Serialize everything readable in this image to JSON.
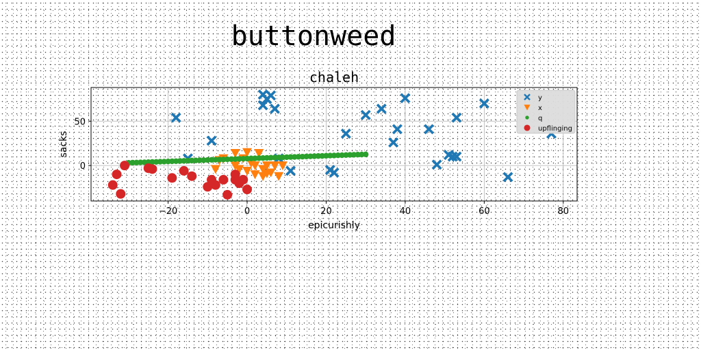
{
  "figure": {
    "suptitle": "buttonweed"
  },
  "chart_data": {
    "type": "scatter",
    "title": "chaleh",
    "xlabel": "epicurishly",
    "ylabel": "sacks",
    "xlim": [
      -39.5,
      83.5
    ],
    "ylim": [
      -40,
      88
    ],
    "xticks": [
      -20,
      0,
      20,
      40,
      60,
      80
    ],
    "yticks": [
      0,
      50
    ],
    "grid": true,
    "legend_position": "top-right",
    "series": [
      {
        "name": "y",
        "marker": "x",
        "color": "#1f77b4",
        "points": [
          [
            -18,
            54
          ],
          [
            -15,
            8
          ],
          [
            -9,
            28
          ],
          [
            4,
            68
          ],
          [
            4,
            80
          ],
          [
            5,
            75
          ],
          [
            6,
            79
          ],
          [
            7,
            64
          ],
          [
            8,
            8
          ],
          [
            11,
            -6
          ],
          [
            21,
            -5
          ],
          [
            22,
            -8
          ],
          [
            25,
            36
          ],
          [
            30,
            57
          ],
          [
            34,
            64
          ],
          [
            37,
            26
          ],
          [
            38,
            41
          ],
          [
            40,
            76
          ],
          [
            46,
            41
          ],
          [
            48,
            1
          ],
          [
            51,
            12
          ],
          [
            52,
            10
          ],
          [
            53,
            10
          ],
          [
            53,
            54
          ],
          [
            60,
            70
          ],
          [
            66,
            -13
          ],
          [
            77,
            36
          ]
        ]
      },
      {
        "name": "x",
        "marker": "v",
        "color": "#ff7f0e",
        "points": [
          [
            -8,
            -4
          ],
          [
            -7,
            6
          ],
          [
            -6,
            8
          ],
          [
            -3,
            14
          ],
          [
            -3,
            0
          ],
          [
            -2,
            -4
          ],
          [
            -1,
            8
          ],
          [
            0,
            15
          ],
          [
            0,
            -6
          ],
          [
            1,
            3
          ],
          [
            2,
            0
          ],
          [
            2,
            -10
          ],
          [
            3,
            14
          ],
          [
            4,
            -4
          ],
          [
            4,
            -12
          ],
          [
            5,
            0
          ],
          [
            5,
            -9
          ],
          [
            6,
            -8
          ],
          [
            7,
            0
          ],
          [
            8,
            -12
          ],
          [
            9,
            0
          ]
        ]
      },
      {
        "name": "q",
        "marker": "o-small",
        "color": "#2ca02c",
        "points": [
          [
            -30.0,
            3.0
          ],
          [
            -29.0,
            3.2
          ],
          [
            -28.0,
            3.3
          ],
          [
            -27.0,
            3.5
          ],
          [
            -26.0,
            3.6
          ],
          [
            -25.0,
            3.8
          ],
          [
            -24.0,
            4.0
          ],
          [
            -23.0,
            4.1
          ],
          [
            -22.0,
            4.3
          ],
          [
            -21.0,
            4.4
          ],
          [
            -20.0,
            4.6
          ],
          [
            -19.0,
            4.8
          ],
          [
            -18.0,
            4.9
          ],
          [
            -17.0,
            5.1
          ],
          [
            -16.0,
            5.2
          ],
          [
            -15.0,
            5.4
          ],
          [
            -14.0,
            5.6
          ],
          [
            -13.0,
            5.7
          ],
          [
            -12.0,
            5.9
          ],
          [
            -11.0,
            6.0
          ],
          [
            -10.0,
            6.2
          ],
          [
            -9.0,
            6.4
          ],
          [
            -8.0,
            6.5
          ],
          [
            -7.0,
            6.7
          ],
          [
            -6.0,
            6.8
          ],
          [
            -5.0,
            7.0
          ],
          [
            -4.0,
            7.2
          ],
          [
            -3.0,
            7.3
          ],
          [
            -2.0,
            7.5
          ],
          [
            -1.0,
            7.6
          ],
          [
            0.0,
            7.8
          ],
          [
            1.0,
            8.0
          ],
          [
            2.0,
            8.1
          ],
          [
            3.0,
            8.3
          ],
          [
            4.0,
            8.4
          ],
          [
            5.0,
            8.6
          ],
          [
            6.0,
            8.8
          ],
          [
            7.0,
            8.9
          ],
          [
            8.0,
            9.1
          ],
          [
            9.0,
            9.2
          ],
          [
            10.0,
            9.4
          ],
          [
            11.0,
            9.6
          ],
          [
            12.0,
            9.7
          ],
          [
            13.0,
            9.9
          ],
          [
            14.0,
            10.0
          ],
          [
            15.0,
            10.2
          ],
          [
            16.0,
            10.4
          ],
          [
            17.0,
            10.5
          ],
          [
            18.0,
            10.7
          ],
          [
            19.0,
            10.8
          ],
          [
            20.0,
            11.0
          ],
          [
            21.0,
            11.2
          ],
          [
            22.0,
            11.3
          ],
          [
            23.0,
            11.5
          ],
          [
            24.0,
            11.6
          ],
          [
            25.0,
            11.8
          ],
          [
            26.0,
            12.0
          ],
          [
            27.0,
            12.1
          ],
          [
            28.0,
            12.3
          ],
          [
            29.0,
            12.4
          ],
          [
            30.0,
            12.6
          ]
        ]
      },
      {
        "name": "upflinging",
        "marker": "o",
        "color": "#d62728",
        "points": [
          [
            -34,
            -22
          ],
          [
            -33,
            -10
          ],
          [
            -32,
            -32
          ],
          [
            -31,
            0
          ],
          [
            -25,
            -3
          ],
          [
            -24,
            -4
          ],
          [
            -19,
            -14
          ],
          [
            -16,
            -6
          ],
          [
            -14,
            -12
          ],
          [
            -10,
            -24
          ],
          [
            -9,
            -16
          ],
          [
            -8,
            -22
          ],
          [
            -6,
            -16
          ],
          [
            -5,
            -33
          ],
          [
            -3,
            -10
          ],
          [
            -3,
            -16
          ],
          [
            -2,
            -20
          ],
          [
            -1,
            -16
          ],
          [
            0,
            -27
          ]
        ]
      }
    ]
  }
}
